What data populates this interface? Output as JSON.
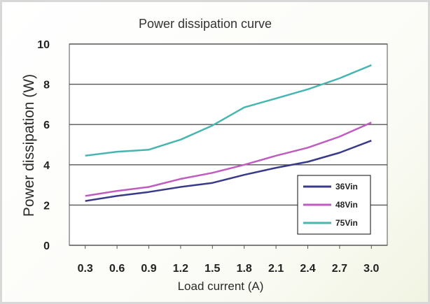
{
  "chart_data": {
    "type": "line",
    "title": "Power dissipation curve",
    "xlabel": "Load current (A)",
    "ylabel": "Power dissipation (W)",
    "x": [
      "0.3",
      "0.6",
      "0.9",
      "1.2",
      "1.5",
      "1.8",
      "2.1",
      "2.4",
      "2.7",
      "3.0"
    ],
    "ylim": [
      0,
      10
    ],
    "yticks": [
      "0",
      "2",
      "4",
      "6",
      "8",
      "10"
    ],
    "grid": true,
    "legend_position": "bottom-right",
    "series": [
      {
        "name": "36Vin",
        "color": "#3a3a8a",
        "values": [
          2.2,
          2.45,
          2.65,
          2.9,
          3.1,
          3.5,
          3.85,
          4.15,
          4.6,
          5.2
        ]
      },
      {
        "name": "48Vin",
        "color": "#c05cc0",
        "values": [
          2.45,
          2.7,
          2.9,
          3.3,
          3.6,
          4.0,
          4.45,
          4.85,
          5.4,
          6.1
        ]
      },
      {
        "name": "75Vin",
        "color": "#47b6b0",
        "values": [
          4.45,
          4.65,
          4.75,
          5.25,
          5.95,
          6.85,
          7.3,
          7.75,
          8.3,
          8.95
        ]
      }
    ]
  }
}
